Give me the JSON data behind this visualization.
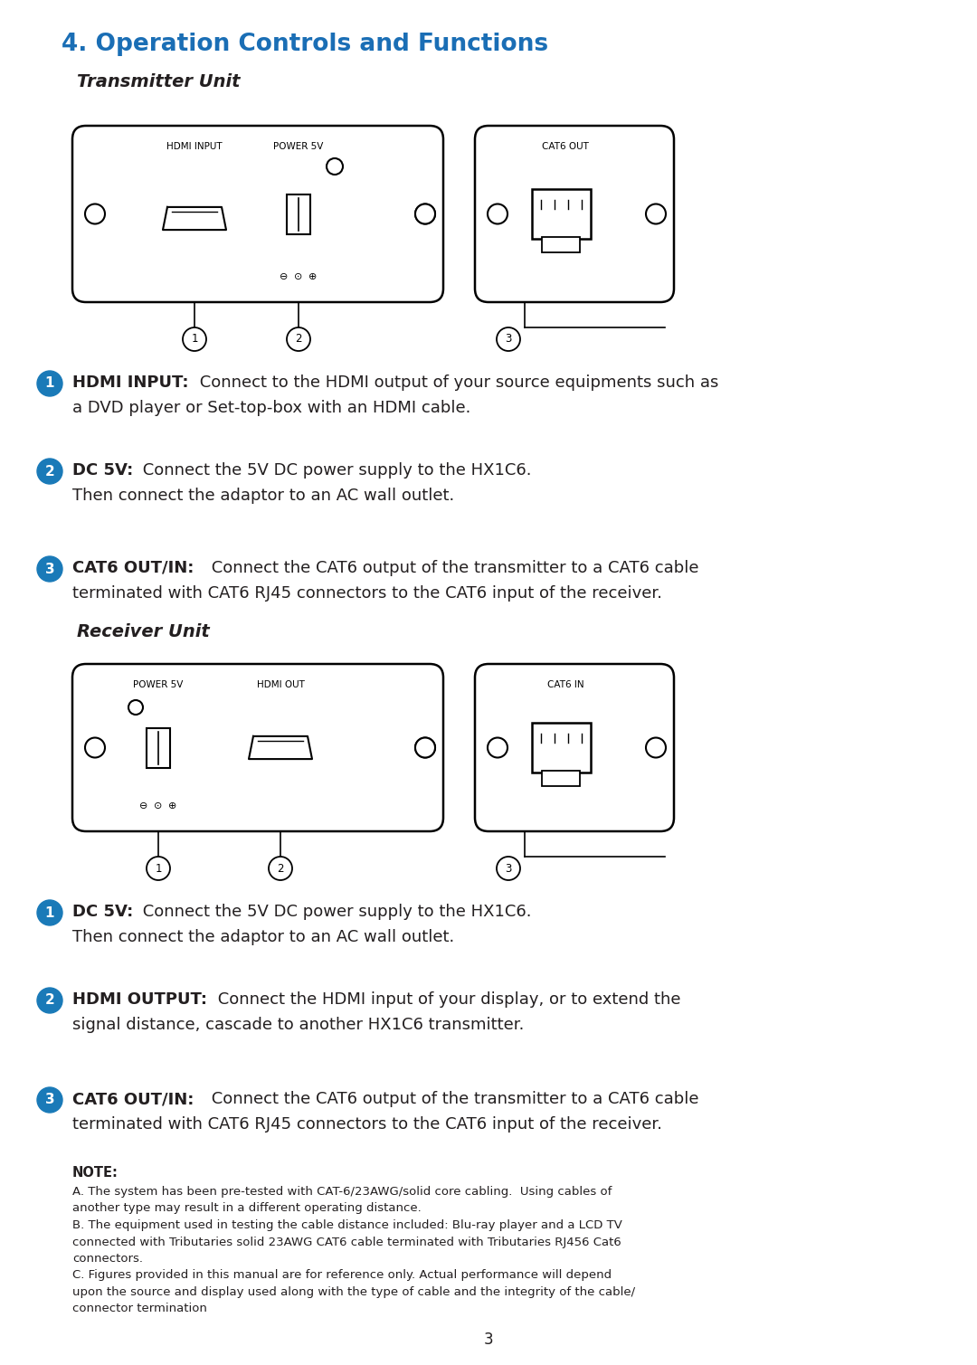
{
  "title": "4. Operation Controls and Functions",
  "title_color": "#1a6eb5",
  "bg_color": "#ffffff",
  "text_color": "#231f20",
  "bullet_color": "#1a7ab8",
  "transmitter_label": "Transmitter Unit",
  "receiver_label": "Receiver Unit",
  "note_title": "NOTE:",
  "note_text": "A. The system has been pre-tested with CAT-6/23AWG/solid core cabling.  Using cables of\nanother type may result in a different operating distance.\nB. The equipment used in testing the cable distance included: Blu-ray player and a LCD TV\nconnected with Tributaries solid 23AWG CAT6 cable terminated with Tributaries RJ456 Cat6\nconnectors.\nC. Figures provided in this manual are for reference only. Actual performance will depend\nupon the source and display used along with the type of cable and the integrity of the cable/\nconnector termination",
  "page_num": "3"
}
